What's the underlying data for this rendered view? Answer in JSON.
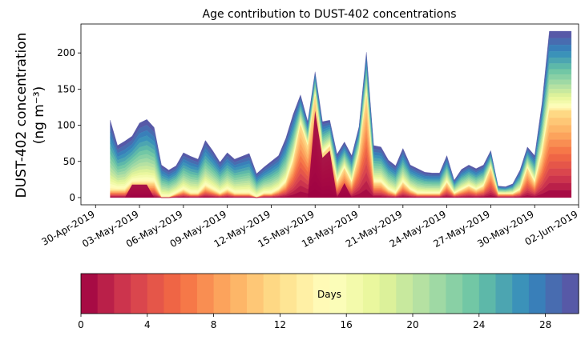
{
  "chart_data": {
    "type": "area",
    "title": "Age contribution to DUST-402 concentrations",
    "ylabel_line1": "DUST-402 concentration",
    "ylabel_line2": "(ng m⁻³)",
    "xlabel": "",
    "ylim": [
      -10,
      240
    ],
    "yticks": [
      0,
      50,
      100,
      150,
      200
    ],
    "xlim": [
      "2019-04-29",
      "2019-06-02"
    ],
    "xtick_labels": [
      "30-Apr-2019",
      "03-May-2019",
      "06-May-2019",
      "09-May-2019",
      "12-May-2019",
      "15-May-2019",
      "18-May-2019",
      "21-May-2019",
      "24-May-2019",
      "27-May-2019",
      "30-May-2019",
      "02-Jun-2019"
    ],
    "x": [
      "2019-05-01",
      "2019-05-02",
      "2019-05-03",
      "2019-05-04",
      "2019-05-05",
      "2019-05-06",
      "2019-05-07",
      "2019-05-08",
      "2019-05-09",
      "2019-05-10",
      "2019-05-11",
      "2019-05-12",
      "2019-05-13",
      "2019-05-14",
      "2019-05-15",
      "2019-05-16",
      "2019-05-17",
      "2019-05-18",
      "2019-05-19",
      "2019-05-20",
      "2019-05-21",
      "2019-05-22",
      "2019-05-23",
      "2019-05-24",
      "2019-05-25",
      "2019-05-26",
      "2019-05-27",
      "2019-05-28",
      "2019-05-29",
      "2019-05-30",
      "2019-05-31",
      "2019-06-01"
    ],
    "x_last": "2019-06-01T12:00",
    "x_halfday": [
      "2019-05-01",
      "2019-05-01T12:00",
      "2019-05-02",
      "2019-05-02T12:00",
      "2019-05-03",
      "2019-05-03T12:00",
      "2019-05-04",
      "2019-05-04T12:00",
      "2019-05-05",
      "2019-05-05T12:00",
      "2019-05-06",
      "2019-05-06T12:00",
      "2019-05-07",
      "2019-05-07T12:00",
      "2019-05-08",
      "2019-05-08T12:00",
      "2019-05-09",
      "2019-05-09T12:00",
      "2019-05-10",
      "2019-05-10T12:00",
      "2019-05-11",
      "2019-05-11T12:00",
      "2019-05-12",
      "2019-05-12T12:00",
      "2019-05-13",
      "2019-05-13T12:00",
      "2019-05-14",
      "2019-05-14T12:00",
      "2019-05-15",
      "2019-05-15T12:00",
      "2019-05-16",
      "2019-05-16T12:00",
      "2019-05-17",
      "2019-05-17T12:00",
      "2019-05-18",
      "2019-05-18T12:00",
      "2019-05-19",
      "2019-05-19T12:00",
      "2019-05-20",
      "2019-05-20T12:00",
      "2019-05-21",
      "2019-05-21T12:00",
      "2019-05-22",
      "2019-05-22T12:00",
      "2019-05-23",
      "2019-05-23T12:00",
      "2019-05-24",
      "2019-05-24T12:00",
      "2019-05-25",
      "2019-05-25T12:00",
      "2019-05-26",
      "2019-05-26T12:00",
      "2019-05-27",
      "2019-05-27T12:00",
      "2019-05-28",
      "2019-05-28T12:00",
      "2019-05-29",
      "2019-05-29T12:00",
      "2019-05-30",
      "2019-05-30T12:00",
      "2019-05-31",
      "2019-05-31T12:00",
      "2019-06-01",
      "2019-06-01T12:00"
    ],
    "total": [
      107,
      72,
      78,
      85,
      103,
      108,
      97,
      45,
      38,
      44,
      62,
      57,
      53,
      79,
      65,
      49,
      62,
      53,
      57,
      61,
      33,
      42,
      50,
      58,
      82,
      115,
      142,
      105,
      174,
      105,
      107,
      60,
      77,
      58,
      98,
      201,
      72,
      70,
      52,
      44,
      68,
      45,
      40,
      35,
      34,
      34,
      58,
      24,
      39,
      45,
      40,
      45,
      65,
      16,
      15,
      19,
      38,
      70,
      58,
      130,
      230,
      230,
      230,
      230
    ],
    "young_band": [
      10,
      10,
      10,
      20,
      20,
      20,
      20,
      0,
      0,
      5,
      10,
      5,
      5,
      15,
      10,
      5,
      10,
      5,
      5,
      5,
      0,
      5,
      5,
      10,
      20,
      50,
      100,
      70,
      140,
      60,
      70,
      20,
      40,
      20,
      60,
      140,
      20,
      20,
      10,
      5,
      20,
      10,
      5,
      5,
      5,
      5,
      20,
      5,
      10,
      15,
      10,
      15,
      40,
      5,
      5,
      5,
      10,
      40,
      20,
      60,
      120,
      120,
      120,
      120
    ],
    "oldest_band": [
      0,
      0,
      0,
      18,
      18,
      18,
      0,
      0,
      0,
      0,
      0,
      0,
      0,
      0,
      0,
      0,
      0,
      0,
      0,
      0,
      0,
      0,
      0,
      0,
      0,
      0,
      0,
      0,
      120,
      55,
      65,
      0,
      20,
      0,
      0,
      0,
      0,
      0,
      0,
      0,
      0,
      0,
      0,
      0,
      0,
      0,
      0,
      0,
      0,
      0,
      0,
      0,
      0,
      0,
      0,
      0,
      0,
      0,
      0,
      0,
      0,
      0,
      0,
      0
    ],
    "colorbar": {
      "label": "Days",
      "min": 0,
      "max": 30,
      "ticks": [
        0,
        4,
        8,
        12,
        16,
        20,
        24,
        28
      ],
      "levels": 30,
      "colormap": "Spectral"
    }
  }
}
